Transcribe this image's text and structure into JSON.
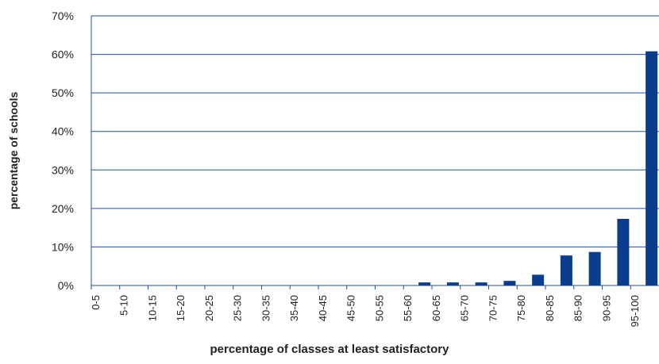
{
  "chart_data": {
    "type": "bar",
    "x_label": "percentage of classes at least satisfactory",
    "y_label": "percentage of schools",
    "categories": [
      "0-5",
      "5-10",
      "10-15",
      "15-20",
      "20-25",
      "25-30",
      "30-35",
      "35-40",
      "40-45",
      "45-50",
      "50-55",
      "55-60",
      "60-65",
      "65-70",
      "70-75",
      "75-80",
      "80-85",
      "85-90",
      "90-95",
      "95-100"
    ],
    "values": [
      0,
      0,
      0,
      0,
      0,
      0,
      0,
      0,
      0,
      0,
      0,
      0.8,
      0.8,
      0.8,
      1.2,
      2.8,
      7.8,
      8.7,
      17.3,
      60.8
    ],
    "color": "#0b3d8c",
    "ylim": [
      0,
      70
    ],
    "yticks": [
      {
        "value": 0,
        "label": "0%"
      },
      {
        "value": 10,
        "label": "10%"
      },
      {
        "value": 20,
        "label": "20%"
      },
      {
        "value": 30,
        "label": "30%"
      },
      {
        "value": 40,
        "label": "40%"
      },
      {
        "value": 50,
        "label": "50%"
      },
      {
        "value": 60,
        "label": "60%"
      },
      {
        "value": 70,
        "label": "70%"
      }
    ],
    "grid": true
  }
}
